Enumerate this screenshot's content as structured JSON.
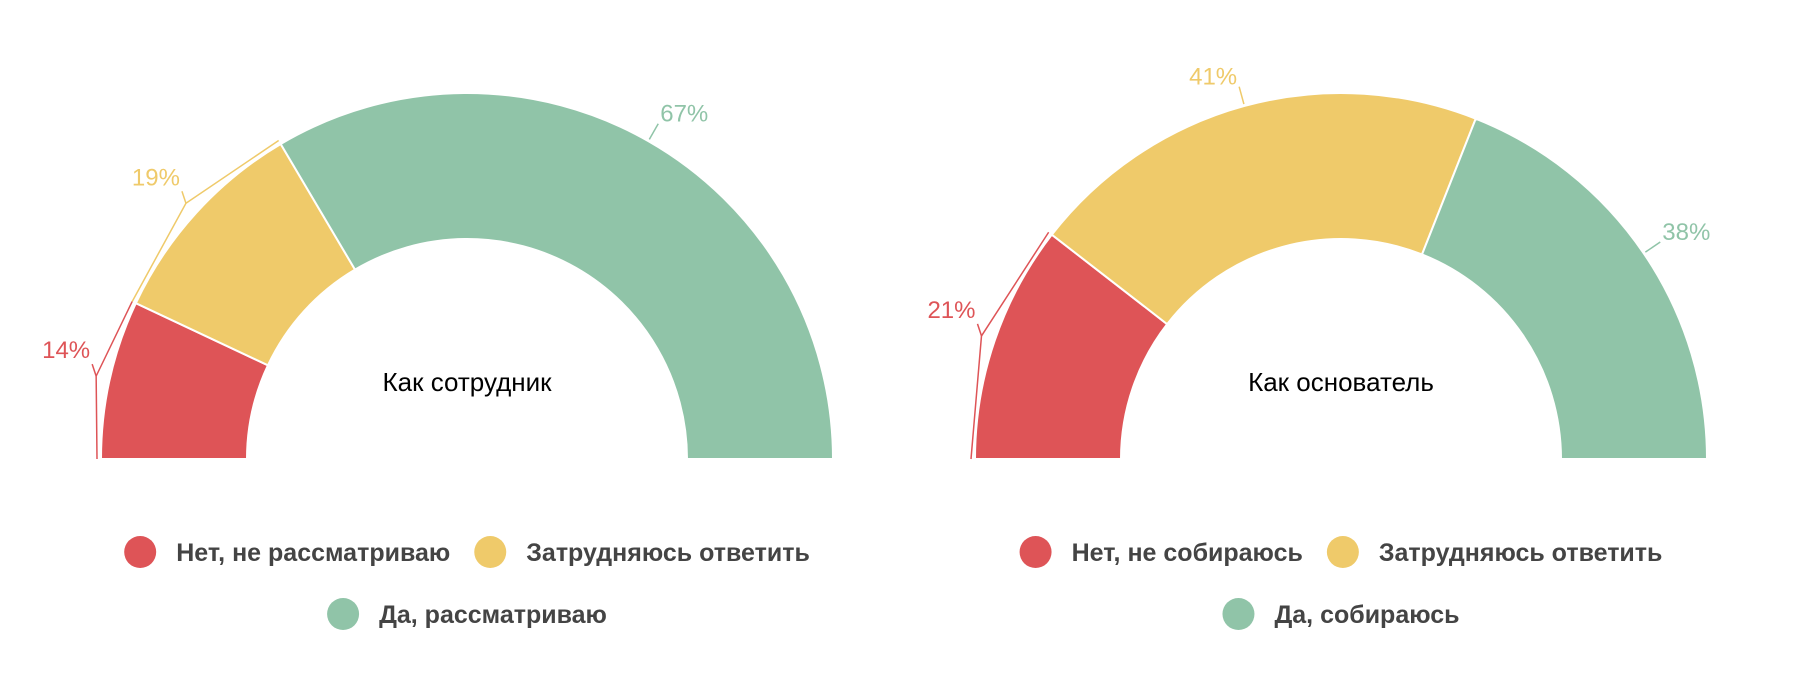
{
  "colors": {
    "red": "#DE5457",
    "yellow": "#EFCA6A",
    "green": "#90C4A8",
    "title": "#000000",
    "legend_text": "#444444"
  },
  "chart_data": [
    {
      "type": "pie",
      "shape": "half-donut",
      "title": "Как сотрудник",
      "series": [
        {
          "name": "Нет, не рассматриваю",
          "value": 14,
          "label": "14%",
          "color": "#DE5457"
        },
        {
          "name": "Затрудняюсь ответить",
          "value": 19,
          "label": "19%",
          "color": "#EFCA6A"
        },
        {
          "name": "Да, рассматриваю",
          "value": 67,
          "label": "67%",
          "color": "#90C4A8"
        }
      ],
      "legend_position": "bottom"
    },
    {
      "type": "pie",
      "shape": "half-donut",
      "title": "Как основатель",
      "series": [
        {
          "name": "Нет, не собираюсь",
          "value": 21,
          "label": "21%",
          "color": "#DE5457"
        },
        {
          "name": "Затрудняюсь ответить",
          "value": 41,
          "label": "41%",
          "color": "#EFCA6A"
        },
        {
          "name": "Да, собираюсь",
          "value": 38,
          "label": "38%",
          "color": "#90C4A8"
        }
      ],
      "legend_position": "bottom"
    }
  ]
}
